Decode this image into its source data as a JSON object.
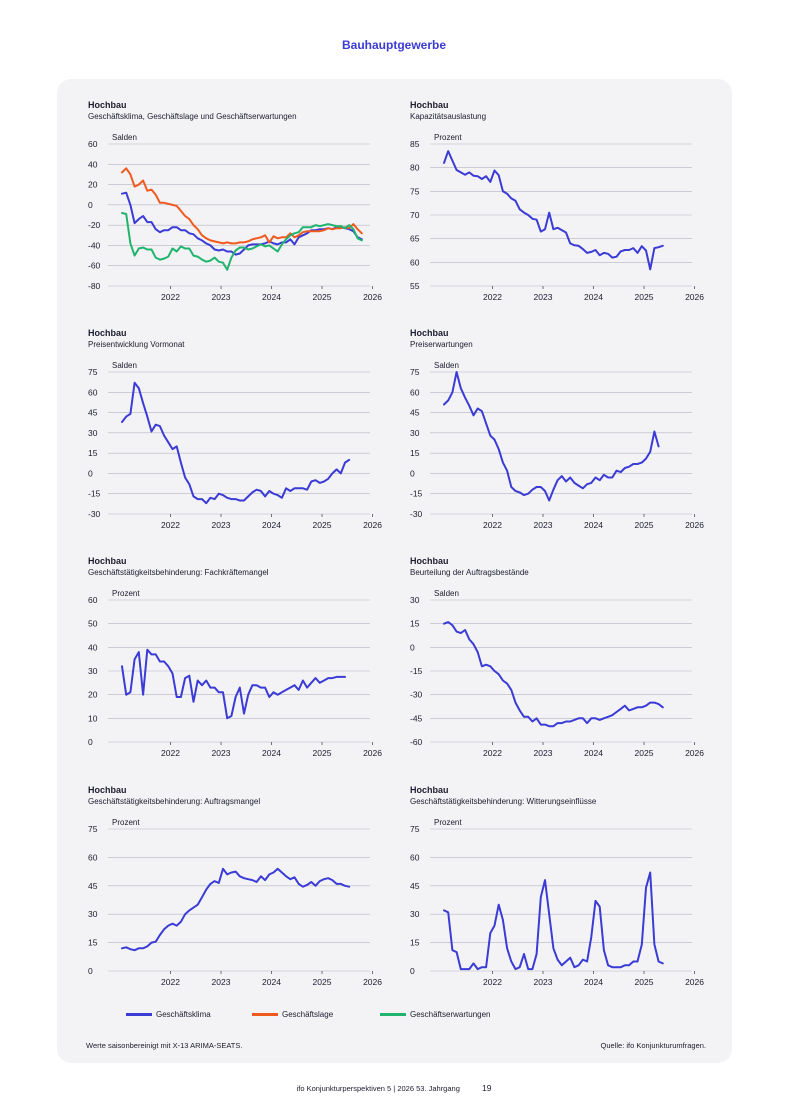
{
  "page": {
    "section_title": "Bauhauptgewerbe",
    "note": "Werte saisonbereinigt mit X-13 ARIMA-SEATS.",
    "source": "Quelle: ifo Konjunkturumfragen.",
    "footer_left": "ifo Konjunkturperspektiven  5 | 2026  53. Jahrgang",
    "page_number": "19"
  },
  "legend": [
    {
      "label": "Geschäftsklima",
      "color": "#3b3bd6"
    },
    {
      "label": "Geschäftslage",
      "color": "#f05a1e"
    },
    {
      "label": "Geschäftserwartungen",
      "color": "#20b46e"
    }
  ],
  "chart_data": [
    {
      "type": "line",
      "title": "Hochbau",
      "subtitle": "Geschäftsklima, Geschäftslage und Geschäftserwartungen",
      "unit": "Salden",
      "ylim": [
        -80,
        60
      ],
      "yticks": [
        60,
        40,
        20,
        0,
        -20,
        -40,
        -60,
        -80
      ],
      "xlim": [
        2021.5,
        2026.45
      ],
      "xticks": [
        "2022",
        "2023",
        "2024",
        "2025",
        "2026"
      ],
      "grid": true,
      "series": [
        {
          "name": "Geschäftsklima",
          "color": "#3b3bd6",
          "x_start": 2021.54,
          "x_step": 0.0833,
          "values": [
            11,
            12,
            0,
            -18,
            -14,
            -11,
            -17,
            -17,
            -24,
            -27,
            -25,
            -25,
            -22,
            -22,
            -25,
            -25,
            -28,
            -29,
            -33,
            -35,
            -38,
            -40,
            -44,
            -45,
            -44,
            -46,
            -46,
            -49,
            -48,
            -44,
            -40,
            -39,
            -39,
            -39,
            -38,
            -36,
            -38,
            -39,
            -37,
            -37,
            -34,
            -39,
            -32,
            -30,
            -28,
            -25,
            -25,
            -24,
            -24,
            -23,
            -24,
            -22,
            -22,
            -23,
            -24,
            -26,
            -32,
            -34
          ]
        },
        {
          "name": "Geschäftslage",
          "color": "#f05a1e",
          "x_start": 2021.54,
          "x_step": 0.0833,
          "values": [
            32,
            36,
            30,
            18,
            20,
            24,
            14,
            15,
            10,
            2,
            2,
            1,
            0,
            -1,
            -6,
            -11,
            -14,
            -20,
            -24,
            -30,
            -33,
            -35,
            -36,
            -37,
            -38,
            -37,
            -38,
            -38,
            -37,
            -37,
            -36,
            -34,
            -33,
            -32,
            -30,
            -37,
            -31,
            -33,
            -32,
            -32,
            -28,
            -32,
            -30,
            -27,
            -26,
            -26,
            -26,
            -26,
            -25,
            -23,
            -24,
            -23,
            -23,
            -22,
            -23,
            -19,
            -24,
            -28
          ]
        },
        {
          "name": "Geschäftserwartungen",
          "color": "#20b46e",
          "x_start": 2021.54,
          "x_step": 0.0833,
          "values": [
            -8,
            -9,
            -38,
            -50,
            -43,
            -42,
            -44,
            -44,
            -52,
            -54,
            -53,
            -51,
            -43,
            -46,
            -41,
            -43,
            -43,
            -50,
            -51,
            -54,
            -56,
            -55,
            -52,
            -56,
            -57,
            -64,
            -52,
            -45,
            -42,
            -42,
            -44,
            -43,
            -41,
            -39,
            -41,
            -40,
            -43,
            -46,
            -39,
            -34,
            -30,
            -28,
            -27,
            -22,
            -22,
            -22,
            -20,
            -21,
            -20,
            -19,
            -20,
            -21,
            -21,
            -23,
            -20,
            -24,
            -33,
            -35
          ]
        }
      ]
    },
    {
      "type": "line",
      "title": "Hochbau",
      "subtitle": "Kapazitätsauslastung",
      "unit": "Prozent",
      "ylim": [
        55,
        85
      ],
      "yticks": [
        85,
        80,
        75,
        70,
        65,
        60,
        55
      ],
      "xlim": [
        2021.5,
        2026.45
      ],
      "xticks": [
        "2022",
        "2023",
        "2024",
        "2025",
        "2026"
      ],
      "grid": true,
      "series": [
        {
          "name": "Kapazitätsauslastung",
          "color": "#3b3bd6",
          "x_start": 2021.54,
          "x_step": 0.0833,
          "values": [
            81,
            83.5,
            81.5,
            79.5,
            79,
            78.5,
            79,
            78.3,
            78.2,
            77.6,
            78.2,
            77,
            79.4,
            78.4,
            75,
            74.5,
            73.5,
            73,
            71.2,
            70.5,
            70,
            69.2,
            69,
            66.5,
            67,
            70.5,
            67,
            67.3,
            66.8,
            66.3,
            64,
            63.6,
            63.5,
            62.8,
            62,
            62.2,
            62.6,
            61.5,
            62,
            61.8,
            61,
            61.2,
            62.3,
            62.6,
            62.6,
            63,
            62,
            63.4,
            62.5,
            58.5,
            63,
            63.2,
            63.5
          ]
        }
      ]
    },
    {
      "type": "line",
      "title": "Hochbau",
      "subtitle": "Preisentwicklung Vormonat",
      "unit": "Salden",
      "ylim": [
        -30,
        75
      ],
      "yticks": [
        75,
        60,
        45,
        30,
        15,
        0,
        -15,
        -30
      ],
      "xlim": [
        2021.5,
        2026.45
      ],
      "xticks": [
        "2022",
        "2023",
        "2024",
        "2025",
        "2026"
      ],
      "grid": true,
      "series": [
        {
          "name": "Preisentwicklung Vormonat",
          "color": "#3b3bd6",
          "x_start": 2021.54,
          "x_step": 0.0833,
          "values": [
            38,
            42,
            44,
            67,
            63,
            52,
            42,
            31,
            36,
            35,
            28,
            23,
            18,
            20,
            8,
            -3,
            -8,
            -17,
            -19,
            -19,
            -22,
            -18,
            -19,
            -15,
            -16,
            -18,
            -19,
            -19,
            -20,
            -20,
            -17,
            -14,
            -12,
            -13,
            -17,
            -13,
            -15,
            -16,
            -18,
            -11,
            -13,
            -11,
            -11,
            -11,
            -12,
            -6,
            -5,
            -7,
            -6,
            -4,
            0,
            3,
            0,
            8,
            10
          ]
        }
      ]
    },
    {
      "type": "line",
      "title": "Hochbau",
      "subtitle": "Preiserwartungen",
      "unit": "Salden",
      "ylim": [
        -30,
        75
      ],
      "yticks": [
        75,
        60,
        45,
        30,
        15,
        0,
        -15,
        -30
      ],
      "xlim": [
        2021.5,
        2026.45
      ],
      "xticks": [
        "2022",
        "2023",
        "2024",
        "2025",
        "2026"
      ],
      "grid": true,
      "series": [
        {
          "name": "Preiserwartungen",
          "color": "#3b3bd6",
          "x_start": 2021.54,
          "x_step": 0.0833,
          "values": [
            51,
            54,
            60,
            75,
            63,
            56,
            50,
            43,
            48,
            46,
            37,
            28,
            25,
            18,
            8,
            2,
            -10,
            -13,
            -14,
            -16,
            -15,
            -12,
            -10,
            -10,
            -13,
            -20,
            -12,
            -5,
            -2,
            -6,
            -3,
            -7,
            -9,
            -11,
            -8,
            -7,
            -3,
            -5,
            -1,
            -3,
            -3,
            2,
            1,
            4,
            5,
            7,
            7,
            8,
            11,
            16,
            31,
            20
          ]
        }
      ]
    },
    {
      "type": "line",
      "title": "Hochbau",
      "subtitle": "Geschäftstätigkeitsbehinderung: Fachkräftemangel",
      "unit": "Prozent",
      "ylim": [
        0,
        60
      ],
      "yticks": [
        60,
        50,
        40,
        30,
        20,
        10,
        0
      ],
      "xlim": [
        2021.5,
        2026.45
      ],
      "xticks": [
        "2022",
        "2023",
        "2024",
        "2025",
        "2026"
      ],
      "grid": true,
      "series": [
        {
          "name": "Fachkräftemangel",
          "color": "#3b3bd6",
          "x_start": 2021.54,
          "x_step": 0.0833,
          "values": [
            32,
            20,
            21,
            35,
            38,
            20,
            39,
            37,
            37,
            34,
            34,
            32,
            29,
            19,
            19,
            27,
            28,
            17,
            26,
            24,
            26,
            23,
            23,
            21,
            21,
            10,
            11,
            19,
            23,
            12,
            20,
            24,
            24,
            23,
            23,
            19,
            21,
            20,
            21,
            22,
            23,
            24,
            22,
            26,
            23,
            25,
            27,
            25,
            26,
            27,
            27,
            27.5,
            27.5,
            27.5
          ]
        }
      ]
    },
    {
      "type": "line",
      "title": "Hochbau",
      "subtitle": "Beurteilung der Auftragsbestände",
      "unit": "Salden",
      "ylim": [
        -60,
        30
      ],
      "yticks": [
        30,
        15,
        0,
        -15,
        -30,
        -45,
        -60
      ],
      "xlim": [
        2021.5,
        2026.45
      ],
      "xticks": [
        "2022",
        "2023",
        "2024",
        "2025",
        "2026"
      ],
      "grid": true,
      "series": [
        {
          "name": "Auftragsbestände",
          "color": "#3b3bd6",
          "x_start": 2021.54,
          "x_step": 0.0833,
          "values": [
            15,
            16,
            14,
            10,
            9,
            11,
            5,
            2,
            -3,
            -12,
            -11,
            -12,
            -15,
            -17,
            -21,
            -23,
            -27,
            -35,
            -40,
            -44,
            -44,
            -47,
            -45,
            -49,
            -49,
            -50,
            -50,
            -48,
            -48,
            -47,
            -47,
            -46,
            -45,
            -45,
            -48,
            -45,
            -45,
            -46,
            -45,
            -44,
            -43,
            -41,
            -39,
            -37,
            -40,
            -39,
            -38,
            -38,
            -37,
            -35,
            -35,
            -36,
            -38
          ]
        }
      ]
    },
    {
      "type": "line",
      "title": "Hochbau",
      "subtitle": "Geschäftstätigkeitsbehinderung: Auftragsmangel",
      "unit": "Prozent",
      "ylim": [
        0,
        75
      ],
      "yticks": [
        75,
        60,
        45,
        30,
        15,
        0
      ],
      "xlim": [
        2021.5,
        2026.45
      ],
      "xticks": [
        "2022",
        "2023",
        "2024",
        "2025",
        "2026"
      ],
      "grid": true,
      "series": [
        {
          "name": "Auftragsmangel",
          "color": "#3b3bd6",
          "x_start": 2021.54,
          "x_step": 0.0833,
          "values": [
            12,
            12.5,
            11.5,
            11,
            12,
            12,
            13,
            15,
            15.5,
            19,
            22,
            24,
            25,
            24,
            26,
            30,
            32,
            33.5,
            35,
            39,
            43,
            46,
            47.5,
            46.5,
            54,
            51,
            52,
            52.5,
            50,
            49,
            48.5,
            48,
            47,
            50,
            48,
            51,
            52,
            54,
            52,
            50,
            48.5,
            49.5,
            46,
            44.5,
            45.5,
            47,
            45,
            47.5,
            48.5,
            49,
            48,
            46,
            46,
            45,
            44.5
          ]
        }
      ]
    },
    {
      "type": "line",
      "title": "Hochbau",
      "subtitle": "Geschäftstätigkeitsbehinderung: Witterungseinflüsse",
      "unit": "Prozent",
      "ylim": [
        0,
        75
      ],
      "yticks": [
        75,
        60,
        45,
        30,
        15,
        0
      ],
      "xlim": [
        2021.5,
        2026.45
      ],
      "xticks": [
        "2022",
        "2023",
        "2024",
        "2025",
        "2026"
      ],
      "grid": true,
      "series": [
        {
          "name": "Witterungseinflüsse",
          "color": "#3b3bd6",
          "x_start": 2021.54,
          "x_step": 0.0833,
          "values": [
            32,
            31,
            11,
            10,
            1,
            1,
            1,
            4,
            1,
            2,
            2,
            20,
            24,
            35,
            27,
            12,
            5,
            1,
            2,
            9,
            1,
            1,
            9,
            39,
            48,
            30,
            12,
            6,
            3,
            5,
            7,
            2,
            3,
            6,
            5,
            18,
            37,
            34,
            11,
            3,
            2,
            2,
            2,
            3,
            3,
            5,
            5,
            14,
            44,
            52,
            14,
            5,
            4
          ]
        }
      ]
    }
  ]
}
